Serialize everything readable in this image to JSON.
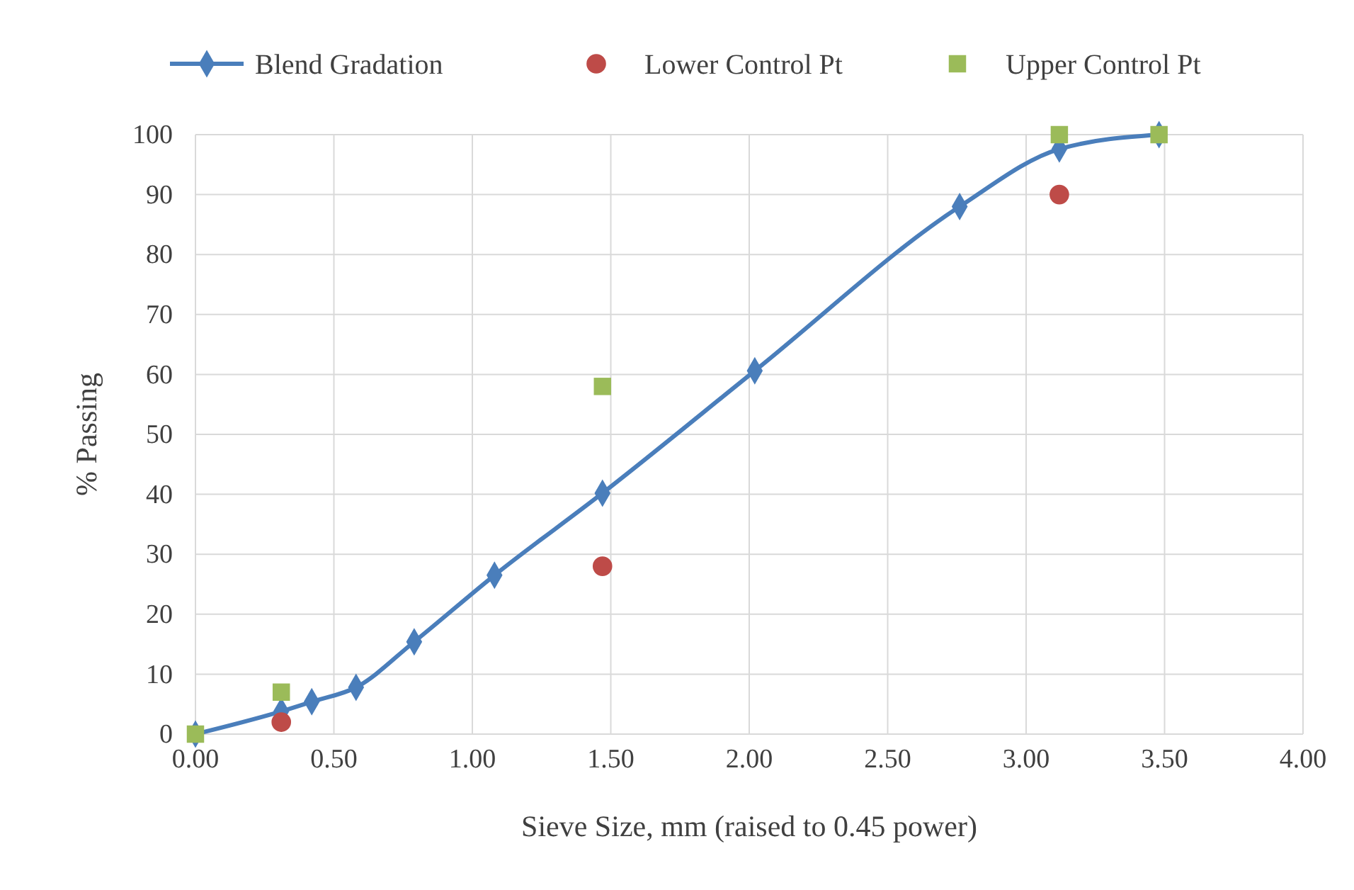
{
  "chart_data": {
    "type": "line",
    "xlabel": "Sieve Size, mm (raised to 0.45 power)",
    "ylabel": "% Passing",
    "xlim": [
      0,
      4
    ],
    "xticks": [
      {
        "value": 0,
        "label": "0.00"
      },
      {
        "value": 0.5,
        "label": "0.50"
      },
      {
        "value": 1,
        "label": "1.00"
      },
      {
        "value": 1.5,
        "label": "1.50"
      },
      {
        "value": 2,
        "label": "2.00"
      },
      {
        "value": 2.5,
        "label": "2.50"
      },
      {
        "value": 3,
        "label": "3.00"
      },
      {
        "value": 3.5,
        "label": "3.50"
      },
      {
        "value": 4,
        "label": "4.00"
      }
    ],
    "ylim": [
      0,
      100
    ],
    "yticks": [
      0,
      10,
      20,
      30,
      40,
      50,
      60,
      70,
      80,
      90,
      100
    ],
    "grid": true,
    "legend": "top",
    "series": [
      {
        "name": "Blend Gradation",
        "marker": "diamond",
        "color": "#4a7ebb",
        "x": [
          0,
          0.31,
          0.42,
          0.58,
          0.79,
          1.08,
          1.47,
          2.02,
          2.76,
          3.12,
          3.48
        ],
        "values": [
          0,
          3.8,
          5.4,
          7.8,
          15.4,
          26.5,
          40.2,
          60.6,
          88,
          97.6,
          100
        ]
      },
      {
        "name": "Lower Control Pt",
        "type": "scatter",
        "marker": "circle",
        "color": "#be4b48",
        "x": [
          0.31,
          1.47,
          3.12
        ],
        "values": [
          2,
          28,
          90
        ]
      },
      {
        "name": "Upper Control Pt",
        "type": "scatter",
        "marker": "square",
        "color": "#9bbb59",
        "x": [
          0,
          0.31,
          1.47,
          3.12,
          3.48
        ],
        "values": [
          0,
          7,
          58,
          100,
          100
        ]
      }
    ]
  }
}
